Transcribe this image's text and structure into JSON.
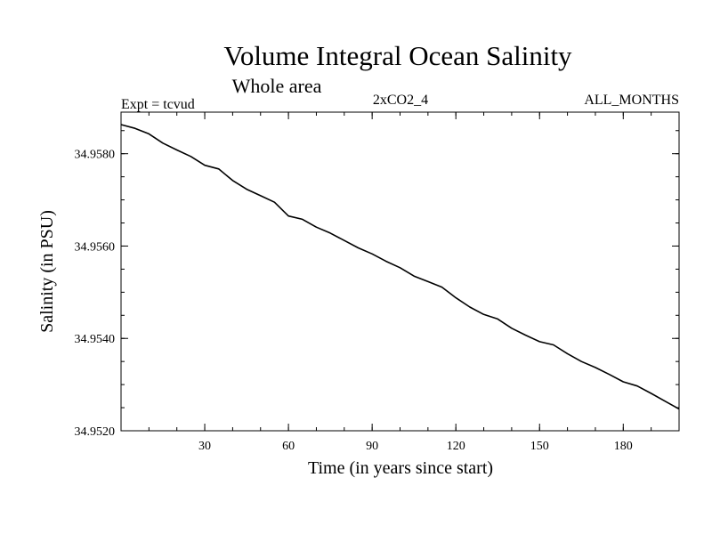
{
  "chart_data": {
    "type": "line",
    "title": "Volume Integral Ocean Salinity",
    "subtitle": "Whole area",
    "annotations": {
      "left": "Expt = tcvud",
      "center": "2xCO2_4",
      "right": "ALL_MONTHS"
    },
    "xlabel": "Time (in years since start)",
    "ylabel": "Salinity (in PSU)",
    "xlim": [
      0,
      200
    ],
    "ylim": [
      34.952,
      34.9589
    ],
    "x_ticks": [
      30,
      60,
      90,
      120,
      150,
      180
    ],
    "x_tick_labels": [
      "30",
      "60",
      "90",
      "120",
      "150",
      "180"
    ],
    "y_ticks": [
      34.952,
      34.954,
      34.956,
      34.958
    ],
    "y_tick_labels": [
      "34.9520",
      "34.9540",
      "34.9560",
      "34.9580"
    ],
    "grid": false,
    "series": [
      {
        "color": "#000000",
        "x": [
          0,
          5,
          10,
          15,
          20,
          25,
          30,
          35,
          40,
          45,
          50,
          55,
          60,
          65,
          70,
          75,
          80,
          85,
          90,
          95,
          100,
          105,
          110,
          115,
          120,
          125,
          130,
          135,
          140,
          145,
          150,
          155,
          160,
          165,
          170,
          175,
          180,
          185,
          190,
          195,
          200
        ],
        "y": [
          34.95863,
          34.95855,
          34.95843,
          34.95823,
          34.95808,
          34.95794,
          34.95775,
          34.95767,
          34.95742,
          34.95723,
          34.95709,
          34.95695,
          34.95665,
          34.95658,
          34.95641,
          34.95628,
          34.95612,
          34.95596,
          34.95583,
          34.95567,
          34.95553,
          34.95535,
          34.95523,
          34.95511,
          34.95488,
          34.95468,
          34.95452,
          34.95442,
          34.95422,
          34.95407,
          34.95393,
          34.95386,
          34.95367,
          34.9535,
          34.95337,
          34.95322,
          34.95306,
          34.95297,
          34.95281,
          34.95264,
          34.95247
        ]
      }
    ]
  }
}
